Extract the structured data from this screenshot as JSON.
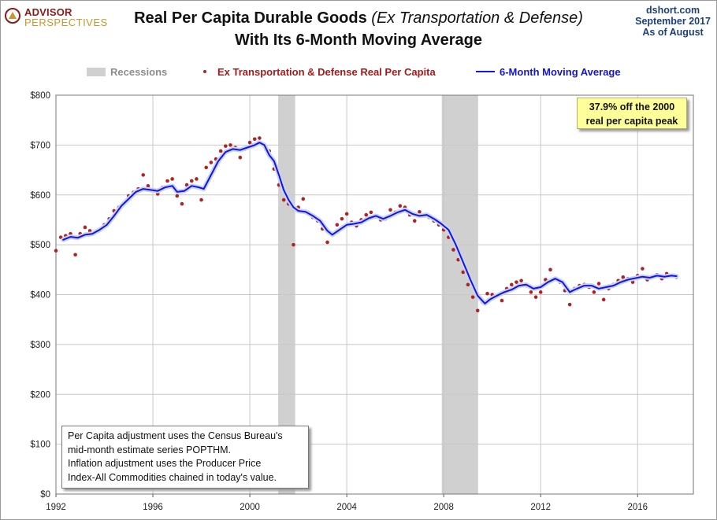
{
  "header": {
    "logo_line1": "ADVISOR",
    "logo_line2": "PERSPECTIVES",
    "title_main": "Real Per Capita Durable Goods ",
    "title_italic": "(Ex Transportation & Defense)",
    "title_line2": "With Its 6-Month Moving Average",
    "source_line1": "dshort.com",
    "source_line2": "September 2017",
    "source_line3": "As of August"
  },
  "colors": {
    "dots": "#b22222",
    "moving_average": "#1515e0",
    "recession": "#d0d0d0",
    "callout_bg": "#ffff99"
  },
  "callout": {
    "line1": "37.9% off the 2000",
    "line2": "real per capita peak"
  },
  "note": {
    "line1": "Per Capita adjustment uses the Census Bureau's",
    "line2": "mid-month estimate series POPTHM.",
    "line3": "Inflation adjustment uses the Producer Price",
    "line4": "Index-All Commodities chained in today's value."
  },
  "chart_data": {
    "type": "line",
    "xlim": [
      1992,
      2018.3
    ],
    "ylim": [
      0,
      800
    ],
    "grid": true,
    "legend_placement": "top",
    "x_ticks": [
      1992,
      1996,
      2000,
      2004,
      2008,
      2012,
      2016
    ],
    "x_tick_labels": [
      "1992",
      "1996",
      "2000",
      "2004",
      "2008",
      "2012",
      "2016"
    ],
    "y_ticks": [
      0,
      100,
      200,
      300,
      400,
      500,
      600,
      700,
      800
    ],
    "y_tick_labels": [
      "$0",
      "$100",
      "$200",
      "$300",
      "$400",
      "$500",
      "$600",
      "$700",
      "$800"
    ],
    "recessions": [
      {
        "start": 2001.17,
        "end": 2001.87
      },
      {
        "start": 2007.92,
        "end": 2009.42
      }
    ],
    "legend": {
      "recessions": "Recessions",
      "dots": "Ex Transportation & Defense Real Per Capita",
      "moving_average": "6-Month Moving Average"
    },
    "series": [
      {
        "name": "Ex Transportation & Defense Real Per Capita",
        "style": "dots",
        "points": [
          [
            1992.0,
            488
          ],
          [
            1992.2,
            515
          ],
          [
            1992.4,
            518
          ],
          [
            1992.6,
            522
          ],
          [
            1992.8,
            480
          ],
          [
            1993.0,
            522
          ],
          [
            1993.2,
            535
          ],
          [
            1993.4,
            528
          ],
          [
            1993.6,
            525
          ],
          [
            1993.8,
            530
          ],
          [
            1994.0,
            540
          ],
          [
            1994.2,
            552
          ],
          [
            1994.4,
            568
          ],
          [
            1994.6,
            575
          ],
          [
            1994.8,
            582
          ],
          [
            1995.0,
            598
          ],
          [
            1995.2,
            605
          ],
          [
            1995.4,
            612
          ],
          [
            1995.6,
            640
          ],
          [
            1995.8,
            618
          ],
          [
            1996.0,
            610
          ],
          [
            1996.2,
            602
          ],
          [
            1996.4,
            615
          ],
          [
            1996.6,
            628
          ],
          [
            1996.8,
            632
          ],
          [
            1997.0,
            598
          ],
          [
            1997.2,
            582
          ],
          [
            1997.4,
            620
          ],
          [
            1997.6,
            628
          ],
          [
            1997.8,
            632
          ],
          [
            1998.0,
            590
          ],
          [
            1998.2,
            655
          ],
          [
            1998.4,
            665
          ],
          [
            1998.6,
            672
          ],
          [
            1998.8,
            688
          ],
          [
            1999.0,
            698
          ],
          [
            1999.2,
            700
          ],
          [
            1999.4,
            695
          ],
          [
            1999.6,
            675
          ],
          [
            1999.8,
            692
          ],
          [
            2000.0,
            705
          ],
          [
            2000.2,
            712
          ],
          [
            2000.4,
            714
          ],
          [
            2000.6,
            700
          ],
          [
            2000.8,
            688
          ],
          [
            2001.0,
            652
          ],
          [
            2001.2,
            620
          ],
          [
            2001.4,
            590
          ],
          [
            2001.6,
            582
          ],
          [
            2001.8,
            500
          ],
          [
            2002.0,
            575
          ],
          [
            2002.2,
            592
          ],
          [
            2002.4,
            565
          ],
          [
            2002.6,
            555
          ],
          [
            2002.8,
            548
          ],
          [
            2003.0,
            532
          ],
          [
            2003.2,
            505
          ],
          [
            2003.4,
            522
          ],
          [
            2003.6,
            540
          ],
          [
            2003.8,
            552
          ],
          [
            2004.0,
            562
          ],
          [
            2004.2,
            545
          ],
          [
            2004.4,
            538
          ],
          [
            2004.6,
            550
          ],
          [
            2004.8,
            560
          ],
          [
            2005.0,
            565
          ],
          [
            2005.2,
            556
          ],
          [
            2005.4,
            550
          ],
          [
            2005.6,
            552
          ],
          [
            2005.8,
            570
          ],
          [
            2006.0,
            565
          ],
          [
            2006.2,
            578
          ],
          [
            2006.4,
            575
          ],
          [
            2006.6,
            560
          ],
          [
            2006.8,
            548
          ],
          [
            2007.0,
            566
          ],
          [
            2007.2,
            560
          ],
          [
            2007.4,
            555
          ],
          [
            2007.6,
            548
          ],
          [
            2007.8,
            540
          ],
          [
            2008.0,
            530
          ],
          [
            2008.2,
            515
          ],
          [
            2008.4,
            490
          ],
          [
            2008.6,
            470
          ],
          [
            2008.8,
            445
          ],
          [
            2009.0,
            420
          ],
          [
            2009.2,
            395
          ],
          [
            2009.4,
            368
          ],
          [
            2009.6,
            385
          ],
          [
            2009.8,
            402
          ],
          [
            2010.0,
            400
          ],
          [
            2010.2,
            398
          ],
          [
            2010.4,
            388
          ],
          [
            2010.6,
            412
          ],
          [
            2010.8,
            420
          ],
          [
            2011.0,
            425
          ],
          [
            2011.2,
            428
          ],
          [
            2011.4,
            418
          ],
          [
            2011.6,
            405
          ],
          [
            2011.8,
            395
          ],
          [
            2012.0,
            405
          ],
          [
            2012.2,
            430
          ],
          [
            2012.4,
            450
          ],
          [
            2012.6,
            432
          ],
          [
            2012.8,
            425
          ],
          [
            2013.0,
            408
          ],
          [
            2013.2,
            380
          ],
          [
            2013.4,
            412
          ],
          [
            2013.6,
            418
          ],
          [
            2013.8,
            420
          ],
          [
            2014.0,
            415
          ],
          [
            2014.2,
            405
          ],
          [
            2014.4,
            422
          ],
          [
            2014.6,
            390
          ],
          [
            2014.8,
            412
          ],
          [
            2015.0,
            420
          ],
          [
            2015.2,
            428
          ],
          [
            2015.4,
            435
          ],
          [
            2015.6,
            432
          ],
          [
            2015.8,
            425
          ],
          [
            2016.0,
            438
          ],
          [
            2016.2,
            452
          ],
          [
            2016.4,
            430
          ],
          [
            2016.6,
            435
          ],
          [
            2016.8,
            440
          ],
          [
            2017.0,
            432
          ],
          [
            2017.2,
            442
          ],
          [
            2017.4,
            438
          ],
          [
            2017.6,
            435
          ]
        ]
      },
      {
        "name": "6-Month Moving Average",
        "style": "line",
        "points": [
          [
            1992.3,
            510
          ],
          [
            1992.6,
            516
          ],
          [
            1992.9,
            514
          ],
          [
            1993.2,
            520
          ],
          [
            1993.5,
            522
          ],
          [
            1993.8,
            530
          ],
          [
            1994.1,
            540
          ],
          [
            1994.4,
            558
          ],
          [
            1994.7,
            578
          ],
          [
            1995.0,
            592
          ],
          [
            1995.3,
            606
          ],
          [
            1995.6,
            612
          ],
          [
            1995.9,
            610
          ],
          [
            1996.2,
            608
          ],
          [
            1996.5,
            615
          ],
          [
            1996.8,
            618
          ],
          [
            1997.0,
            606
          ],
          [
            1997.3,
            608
          ],
          [
            1997.6,
            618
          ],
          [
            1997.9,
            615
          ],
          [
            1998.1,
            612
          ],
          [
            1998.4,
            640
          ],
          [
            1998.7,
            668
          ],
          [
            1999.0,
            686
          ],
          [
            1999.3,
            692
          ],
          [
            1999.6,
            690
          ],
          [
            1999.9,
            695
          ],
          [
            2000.2,
            700
          ],
          [
            2000.4,
            705
          ],
          [
            2000.6,
            700
          ],
          [
            2000.8,
            680
          ],
          [
            2001.0,
            668
          ],
          [
            2001.2,
            640
          ],
          [
            2001.4,
            610
          ],
          [
            2001.6,
            590
          ],
          [
            2001.8,
            575
          ],
          [
            2002.0,
            568
          ],
          [
            2002.3,
            566
          ],
          [
            2002.6,
            558
          ],
          [
            2002.9,
            548
          ],
          [
            2003.2,
            528
          ],
          [
            2003.4,
            520
          ],
          [
            2003.7,
            530
          ],
          [
            2004.0,
            540
          ],
          [
            2004.3,
            542
          ],
          [
            2004.6,
            545
          ],
          [
            2004.9,
            553
          ],
          [
            2005.2,
            558
          ],
          [
            2005.5,
            552
          ],
          [
            2005.8,
            558
          ],
          [
            2006.1,
            565
          ],
          [
            2006.4,
            570
          ],
          [
            2006.7,
            562
          ],
          [
            2007.0,
            558
          ],
          [
            2007.3,
            560
          ],
          [
            2007.6,
            552
          ],
          [
            2007.9,
            542
          ],
          [
            2008.2,
            530
          ],
          [
            2008.5,
            500
          ],
          [
            2008.8,
            465
          ],
          [
            2009.1,
            430
          ],
          [
            2009.4,
            398
          ],
          [
            2009.7,
            382
          ],
          [
            2009.9,
            390
          ],
          [
            2010.2,
            398
          ],
          [
            2010.5,
            405
          ],
          [
            2010.8,
            410
          ],
          [
            2011.1,
            418
          ],
          [
            2011.4,
            420
          ],
          [
            2011.7,
            412
          ],
          [
            2012.0,
            415
          ],
          [
            2012.3,
            425
          ],
          [
            2012.6,
            432
          ],
          [
            2012.9,
            425
          ],
          [
            2013.2,
            405
          ],
          [
            2013.5,
            412
          ],
          [
            2013.8,
            418
          ],
          [
            2014.1,
            418
          ],
          [
            2014.4,
            412
          ],
          [
            2014.7,
            415
          ],
          [
            2015.0,
            418
          ],
          [
            2015.3,
            425
          ],
          [
            2015.6,
            430
          ],
          [
            2015.9,
            433
          ],
          [
            2016.2,
            436
          ],
          [
            2016.5,
            434
          ],
          [
            2016.8,
            438
          ],
          [
            2017.1,
            436
          ],
          [
            2017.4,
            438
          ],
          [
            2017.6,
            437
          ]
        ]
      }
    ]
  }
}
